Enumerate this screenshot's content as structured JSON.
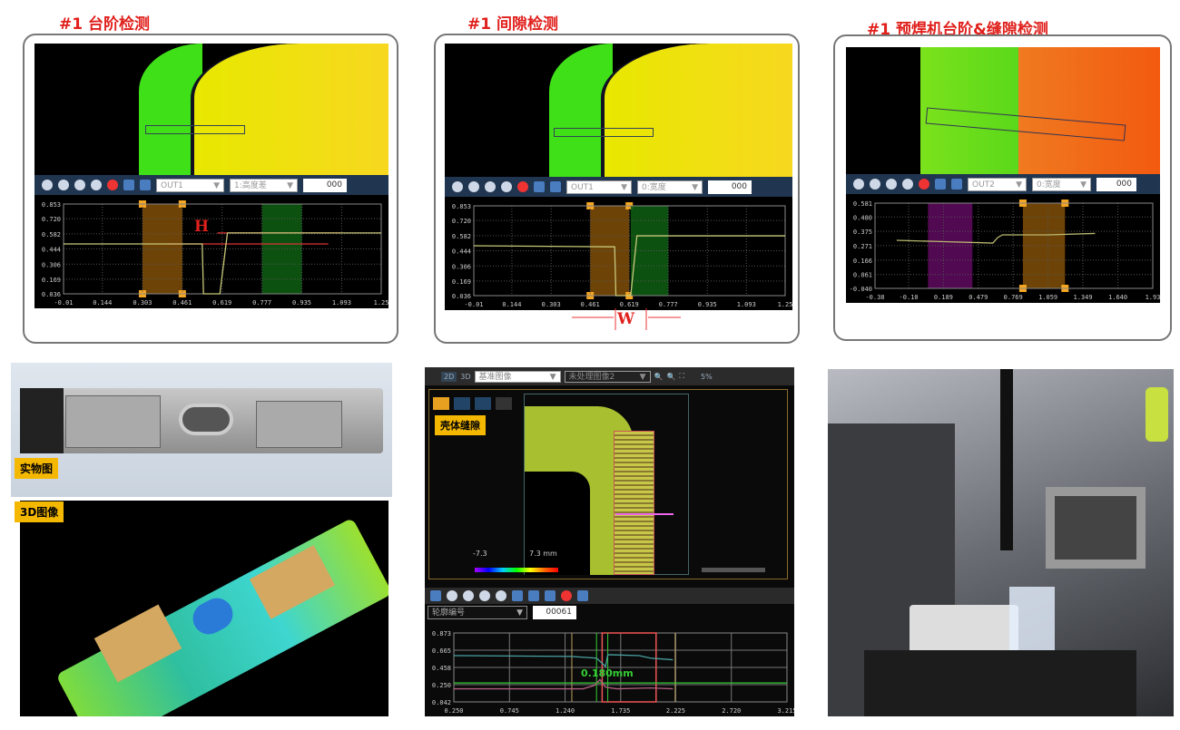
{
  "panels": [
    {
      "title": "#1  台阶检测",
      "out": "OUT1",
      "mode": "1:高度差",
      "value": "000",
      "annotation": "H"
    },
    {
      "title": "#1  间隙检测",
      "out": "OUT1",
      "mode": "0:宽度",
      "value": "000",
      "annotation": "W"
    },
    {
      "title": "#1  预焊机台阶&缝隙检测",
      "out": "OUT2",
      "mode": "0:宽度",
      "value": "000"
    }
  ],
  "photo_labels": {
    "real": "实物图",
    "three_d": "3D图像"
  },
  "software": {
    "view_2d": "2D",
    "view_3d": "3D",
    "image_select": "基准图像",
    "image_select2": "未处理图像2",
    "zoom": "5%",
    "tag": "壳体缝隙",
    "scale_min": "-7.3",
    "scale_max": "7.3 mm",
    "profile_select": "轮廓编号",
    "profile_value": "00061",
    "measurement": "0.180mm"
  },
  "colors": {
    "accent_red": "#e0201c",
    "tag_yellow": "#f5b800",
    "toolbar": "#1f3550"
  },
  "chart_data": [
    {
      "type": "line",
      "xticks": [
        "-0.01",
        "0.144",
        "0.303",
        "0.461",
        "0.619",
        "0.777",
        "0.935",
        "1.093",
        "1.25"
      ],
      "yticks": [
        "0.036",
        "0.169",
        "0.306",
        "0.444",
        "0.582",
        "0.720",
        "0.853"
      ],
      "xlim": [
        -0.01,
        1.25
      ],
      "ylim": [
        0.036,
        0.853
      ],
      "series": [
        {
          "color": "#c8c87a",
          "x": [
            -0.01,
            0.54,
            0.545,
            0.61,
            0.64,
            1.25
          ],
          "y": [
            0.49,
            0.49,
            0.036,
            0.036,
            0.59,
            0.59
          ]
        }
      ],
      "regions": [
        {
          "x": [
            0.303,
            0.461
          ],
          "color": "#7a4a08"
        },
        {
          "x": [
            0.777,
            0.935
          ],
          "color": "#0d5a12"
        }
      ],
      "hlines": [
        {
          "y": 0.59,
          "from": 0.6,
          "to": 1.09,
          "color": "#d33"
        },
        {
          "y": 0.49,
          "from": 0.41,
          "to": 1.04,
          "color": "#d33"
        }
      ]
    },
    {
      "type": "line",
      "xticks": [
        "-0.01",
        "0.144",
        "0.303",
        "0.461",
        "0.619",
        "0.777",
        "0.935",
        "1.093",
        "1.25"
      ],
      "yticks": [
        "0.036",
        "0.169",
        "0.306",
        "0.444",
        "0.582",
        "0.720",
        "0.853"
      ],
      "xlim": [
        -0.01,
        1.25
      ],
      "ylim": [
        0.036,
        0.853
      ],
      "series": [
        {
          "color": "#c8c87a",
          "x": [
            -0.01,
            0.56,
            0.565,
            0.625,
            0.65,
            1.25
          ],
          "y": [
            0.49,
            0.48,
            0.036,
            0.036,
            0.58,
            0.58
          ]
        }
      ],
      "regions": [
        {
          "x": [
            0.461,
            0.619
          ],
          "color": "#7a4a08"
        },
        {
          "x": [
            0.625,
            0.777
          ],
          "color": "#0d5a12"
        }
      ],
      "hlines": []
    },
    {
      "type": "line",
      "xticks": [
        "-0.38",
        "-0.10",
        "0.189",
        "0.479",
        "0.769",
        "1.059",
        "1.349",
        "1.640",
        "1.93"
      ],
      "yticks": [
        "-0.040",
        "0.061",
        "0.166",
        "0.271",
        "0.375",
        "0.480",
        "0.581"
      ],
      "xlim": [
        -0.38,
        1.93
      ],
      "ylim": [
        -0.04,
        0.581
      ],
      "series": [
        {
          "color": "#b8b870",
          "x": [
            -0.2,
            0.2,
            0.6,
            0.64,
            0.68,
            1.05,
            1.45
          ],
          "y": [
            0.31,
            0.3,
            0.29,
            0.33,
            0.35,
            0.35,
            0.36
          ]
        }
      ],
      "regions": [
        {
          "x": [
            0.06,
            0.43
          ],
          "color": "#5a0a5a"
        },
        {
          "x": [
            0.85,
            1.2
          ],
          "color": "#7a4a08"
        }
      ],
      "hlines": []
    },
    {
      "type": "line",
      "xticks": [
        "0.250",
        "0.745",
        "1.240",
        "1.735",
        "2.225",
        "2.720",
        "3.215"
      ],
      "yticks": [
        "0.042",
        "0.250",
        "0.458",
        "0.665",
        "0.873"
      ],
      "xlim": [
        0.25,
        3.215
      ],
      "ylim": [
        0.042,
        0.873
      ],
      "series": [
        {
          "color": "#4aa0a0",
          "x": [
            0.25,
            1.3,
            1.52,
            1.6,
            1.62,
            1.66,
            1.9,
            2.0,
            2.2
          ],
          "y": [
            0.6,
            0.59,
            0.57,
            0.47,
            0.61,
            0.61,
            0.6,
            0.57,
            0.55
          ]
        },
        {
          "color": "#b06080",
          "x": [
            0.25,
            1.4,
            1.5,
            1.55,
            1.6,
            1.7,
            2.0,
            2.2
          ],
          "y": [
            0.2,
            0.2,
            0.24,
            0.31,
            0.22,
            0.2,
            0.21,
            0.2
          ]
        }
      ],
      "regions": [],
      "hlines": [
        {
          "y": 0.27,
          "from": 0.25,
          "to": 3.215,
          "color": "#3c3"
        }
      ],
      "vlines": [
        {
          "x": 1.3,
          "color": "#bba060"
        },
        {
          "x": 1.52,
          "color": "#3c3"
        },
        {
          "x": 1.62,
          "color": "#3c3"
        },
        {
          "x": 2.22,
          "color": "#bba060"
        }
      ],
      "boxes": [
        {
          "x": [
            1.57,
            2.05
          ],
          "color": "#e55"
        }
      ]
    }
  ]
}
